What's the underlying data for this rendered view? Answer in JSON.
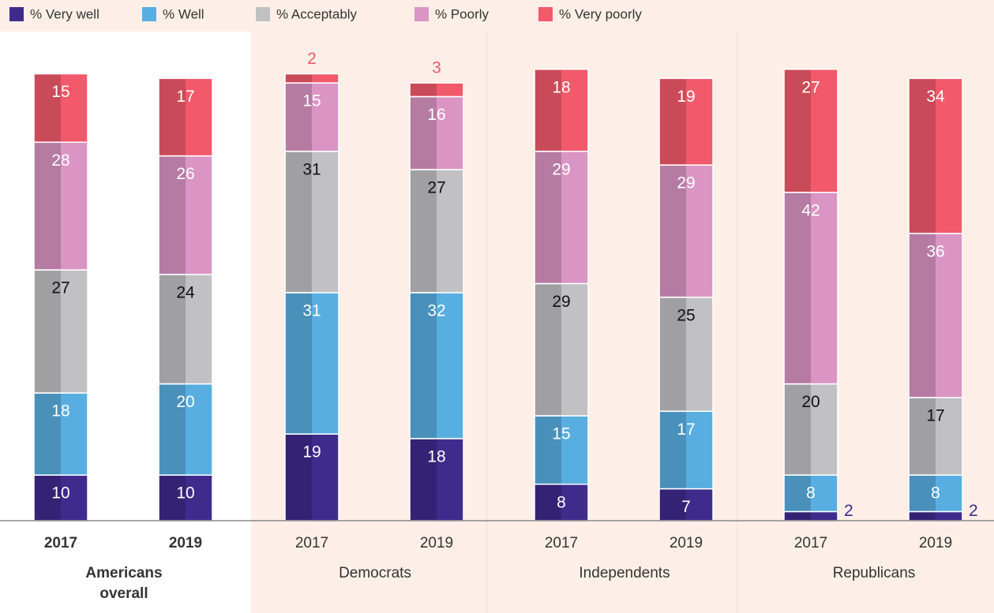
{
  "chart_data": {
    "type": "stacked-bar",
    "groups": [
      "Americans overall",
      "Democrats",
      "Independents",
      "Republicans"
    ],
    "categories": [
      "2017",
      "2019",
      "2017",
      "2019",
      "2017",
      "2019",
      "2017",
      "2019"
    ],
    "series": [
      {
        "name": "% Very well",
        "color": "#3f2b8c",
        "values": [
          10,
          10,
          19,
          18,
          8,
          7,
          2,
          2
        ]
      },
      {
        "name": "% Well",
        "color": "#58aee0",
        "values": [
          18,
          20,
          31,
          32,
          15,
          17,
          8,
          8
        ]
      },
      {
        "name": "% Acceptably",
        "color": "#c1c1c3",
        "values": [
          27,
          24,
          31,
          27,
          29,
          25,
          20,
          17
        ]
      },
      {
        "name": "% Poorly",
        "color": "#da95c4",
        "values": [
          28,
          26,
          15,
          16,
          29,
          29,
          42,
          36
        ]
      },
      {
        "name": "% Very poorly",
        "color": "#f2596a",
        "values": [
          15,
          17,
          2,
          3,
          18,
          19,
          27,
          34
        ]
      }
    ]
  }
}
